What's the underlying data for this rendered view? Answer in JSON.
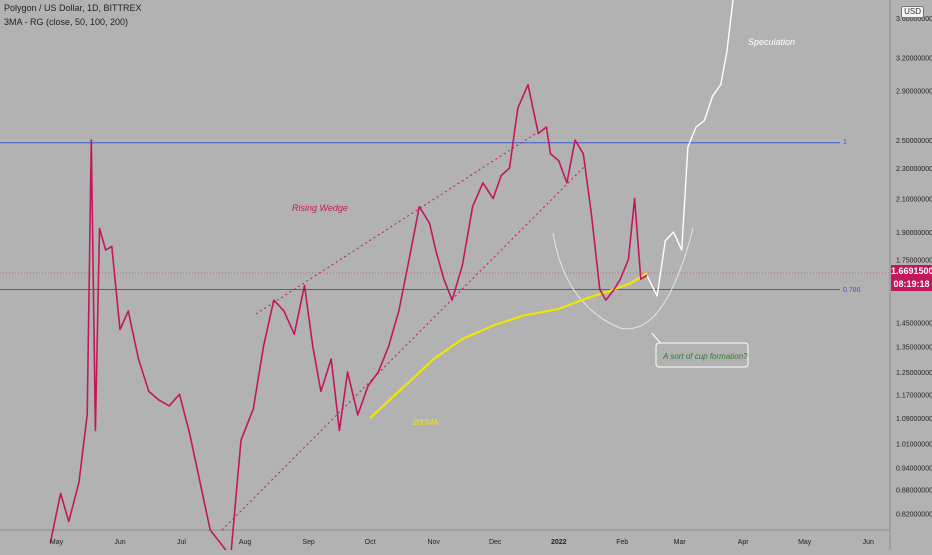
{
  "header": {
    "symbol_line": "Polygon / US Dollar, 1D, BITTREX",
    "indicator_line": "3MA - RG (close, 50, 100, 200)",
    "currency_badge": "USD"
  },
  "price_tag": {
    "price": "1.66915000",
    "countdown": "08:19:18",
    "color": "#c2185b"
  },
  "annotations": {
    "rising_wedge": "Rising Wedge",
    "ma200": "200MA",
    "speculation": "Speculation",
    "cup": "A sort of cup formation?",
    "level_1": "1",
    "level_0786": "0.786"
  },
  "colors": {
    "background": "#b2b2b2",
    "price": "#c2185b",
    "ma200": "#f2e600",
    "fib": "#3a5bd6",
    "speculation": "#ffffff",
    "cup_label": "#2e7d32"
  },
  "chart_data": {
    "type": "line",
    "title": "Polygon / US Dollar, 1D, BITTREX",
    "scale": "log",
    "ylim": [
      0.78,
      3.8
    ],
    "grid": false,
    "x_ticks": [
      "Apr",
      "May",
      "Jun",
      "Jul",
      "Aug",
      "Sep",
      "Oct",
      "Nov",
      "Dec",
      "2022",
      "Feb",
      "Mar",
      "Apr",
      "May",
      "Jun"
    ],
    "y_ticks": [
      "3.60000000",
      "3.20000000",
      "2.90000000",
      "2.50000000",
      "2.30000000",
      "2.10000000",
      "1.90000000",
      "1.75000000",
      "1.45000000",
      "1.35000000",
      "1.25000000",
      "1.17000000",
      "1.09000000",
      "1.01000000",
      "0.94000000",
      "0.88000000",
      "0.82000000"
    ],
    "series": [
      {
        "role": "price",
        "x": [
          "2021-04-28",
          "2021-05-03",
          "2021-05-07",
          "2021-05-12",
          "2021-05-16",
          "2021-05-18",
          "2021-05-20",
          "2021-05-22",
          "2021-05-25",
          "2021-05-28",
          "2021-06-01",
          "2021-06-05",
          "2021-06-10",
          "2021-06-15",
          "2021-06-20",
          "2021-06-25",
          "2021-06-30",
          "2021-07-05",
          "2021-07-10",
          "2021-07-15",
          "2021-07-20",
          "2021-07-25",
          "2021-07-30",
          "2021-08-05",
          "2021-08-10",
          "2021-08-15",
          "2021-08-20",
          "2021-08-25",
          "2021-08-30",
          "2021-09-03",
          "2021-09-07",
          "2021-09-12",
          "2021-09-16",
          "2021-09-20",
          "2021-09-25",
          "2021-09-30",
          "2021-10-05",
          "2021-10-10",
          "2021-10-15",
          "2021-10-20",
          "2021-10-25",
          "2021-10-30",
          "2021-11-02",
          "2021-11-06",
          "2021-11-10",
          "2021-11-15",
          "2021-11-20",
          "2021-11-25",
          "2021-11-30",
          "2021-12-04",
          "2021-12-08",
          "2021-12-12",
          "2021-12-17",
          "2021-12-22",
          "2021-12-26",
          "2021-12-28",
          "2022-01-01",
          "2022-01-05",
          "2022-01-09",
          "2022-01-13",
          "2022-01-17",
          "2022-01-21",
          "2022-01-24",
          "2022-01-28",
          "2022-01-31",
          "2022-02-04",
          "2022-02-07",
          "2022-02-10",
          "2022-02-13"
        ],
        "y": [
          0.75,
          0.87,
          0.8,
          0.9,
          1.1,
          2.5,
          1.05,
          1.92,
          1.8,
          1.82,
          1.42,
          1.5,
          1.3,
          1.18,
          1.15,
          1.13,
          1.17,
          1.04,
          0.9,
          0.78,
          0.75,
          0.72,
          1.02,
          1.12,
          1.35,
          1.55,
          1.5,
          1.4,
          1.62,
          1.35,
          1.18,
          1.3,
          1.05,
          1.25,
          1.1,
          1.2,
          1.25,
          1.35,
          1.5,
          1.75,
          2.05,
          1.95,
          1.8,
          1.65,
          1.55,
          1.72,
          2.05,
          2.2,
          2.1,
          2.25,
          2.3,
          2.75,
          2.95,
          2.55,
          2.6,
          2.4,
          2.35,
          2.2,
          2.5,
          2.4,
          2.0,
          1.6,
          1.55,
          1.6,
          1.65,
          1.75,
          2.1,
          1.65,
          1.669
        ]
      },
      {
        "role": "200-day moving average",
        "x": [
          "2021-10-01",
          "2021-10-15",
          "2021-11-01",
          "2021-11-15",
          "2021-12-01",
          "2021-12-15",
          "2022-01-01",
          "2022-01-15",
          "2022-01-25",
          "2022-02-05",
          "2022-02-13"
        ],
        "y": [
          1.09,
          1.18,
          1.3,
          1.38,
          1.44,
          1.48,
          1.51,
          1.56,
          1.59,
          1.63,
          1.68
        ]
      },
      {
        "role": "speculative projection",
        "x": [
          "2022-02-13",
          "2022-02-18",
          "2022-02-22",
          "2022-02-26",
          "2022-03-02",
          "2022-03-05",
          "2022-03-09",
          "2022-03-13",
          "2022-03-17",
          "2022-03-21",
          "2022-03-24",
          "2022-03-27"
        ],
        "y": [
          1.669,
          1.57,
          1.85,
          1.9,
          1.8,
          2.45,
          2.6,
          2.65,
          2.85,
          2.95,
          3.25,
          3.8
        ]
      },
      {
        "role": "Fib level 1",
        "x": [
          "2021-03-25",
          "2022-05-30"
        ],
        "y": [
          2.48,
          2.48
        ]
      },
      {
        "role": "Fib level 0.786",
        "x": [
          "2021-03-25",
          "2022-05-30"
        ],
        "y": [
          1.6,
          1.6
        ]
      }
    ]
  }
}
